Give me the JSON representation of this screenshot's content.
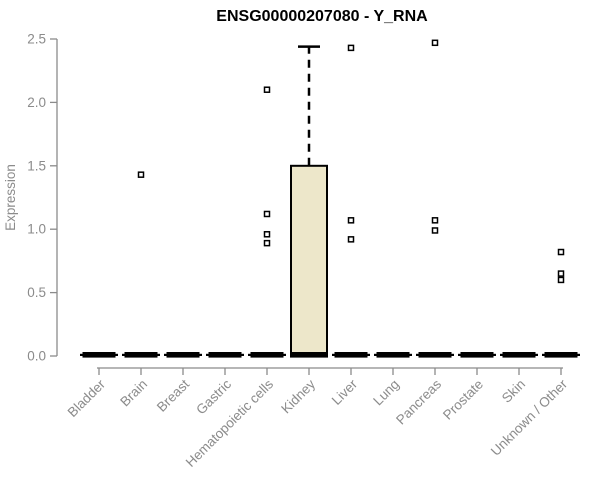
{
  "chart_data": {
    "type": "boxplot",
    "title": "ENSG00000207080 - Y_RNA",
    "ylabel": "Expression",
    "xlabel": "",
    "ylim": [
      0,
      2.5
    ],
    "yticks": [
      0,
      0.5,
      1,
      1.5,
      2,
      2.5
    ],
    "ytick_labels": [
      "0.0",
      "0.5",
      "1.0",
      "1.5",
      "2.0",
      "2.5"
    ],
    "grid": false,
    "legend": null,
    "categories": [
      "Bladder",
      "Brain",
      "Breast",
      "Gastric",
      "Hematopoietic cells",
      "Kidney",
      "Liver",
      "Lung",
      "Pancreas",
      "Prostate",
      "Skin",
      "Unknown / Other"
    ],
    "boxes": [
      {
        "category": "Bladder",
        "median": 0,
        "q1": 0,
        "q3": 0,
        "whisker_low": 0,
        "whisker_high": 0,
        "outliers": []
      },
      {
        "category": "Brain",
        "median": 0,
        "q1": 0,
        "q3": 0,
        "whisker_low": 0,
        "whisker_high": 0,
        "outliers": [
          1.43
        ]
      },
      {
        "category": "Breast",
        "median": 0,
        "q1": 0,
        "q3": 0,
        "whisker_low": 0,
        "whisker_high": 0,
        "outliers": []
      },
      {
        "category": "Gastric",
        "median": 0,
        "q1": 0,
        "q3": 0,
        "whisker_low": 0,
        "whisker_high": 0,
        "outliers": []
      },
      {
        "category": "Hematopoietic cells",
        "median": 0,
        "q1": 0,
        "q3": 0,
        "whisker_low": 0,
        "whisker_high": 0,
        "outliers": [
          2.1,
          1.12,
          0.96,
          0.89
        ]
      },
      {
        "category": "Kidney",
        "median": 0,
        "q1": 0,
        "q3": 1.5,
        "whisker_low": 0,
        "whisker_high": 2.44,
        "outliers": []
      },
      {
        "category": "Liver",
        "median": 0,
        "q1": 0,
        "q3": 0,
        "whisker_low": 0,
        "whisker_high": 0,
        "outliers": [
          2.43,
          1.07,
          0.92
        ]
      },
      {
        "category": "Lung",
        "median": 0,
        "q1": 0,
        "q3": 0,
        "whisker_low": 0,
        "whisker_high": 0,
        "outliers": []
      },
      {
        "category": "Pancreas",
        "median": 0,
        "q1": 0,
        "q3": 0,
        "whisker_low": 0,
        "whisker_high": 0,
        "outliers": [
          2.47,
          1.07,
          0.99
        ]
      },
      {
        "category": "Prostate",
        "median": 0,
        "q1": 0,
        "q3": 0,
        "whisker_low": 0,
        "whisker_high": 0,
        "outliers": []
      },
      {
        "category": "Skin",
        "median": 0,
        "q1": 0,
        "q3": 0,
        "whisker_low": 0,
        "whisker_high": 0,
        "outliers": []
      },
      {
        "category": "Unknown / Other",
        "median": 0,
        "q1": 0,
        "q3": 0,
        "whisker_low": 0,
        "whisker_high": 0,
        "outliers": [
          0.82,
          0.65,
          0.6
        ]
      }
    ],
    "colors": {
      "box_fill": "#EDE7CA",
      "box_border": "#000000",
      "median": "#000000",
      "whisker": "#000000",
      "outlier_stroke": "#000000",
      "outlier_fill": "#FFFFFF",
      "axis": "#8B8B8B",
      "tick_label": "#8B8B8B",
      "title": "#000000",
      "background": "#FFFFFF"
    }
  }
}
